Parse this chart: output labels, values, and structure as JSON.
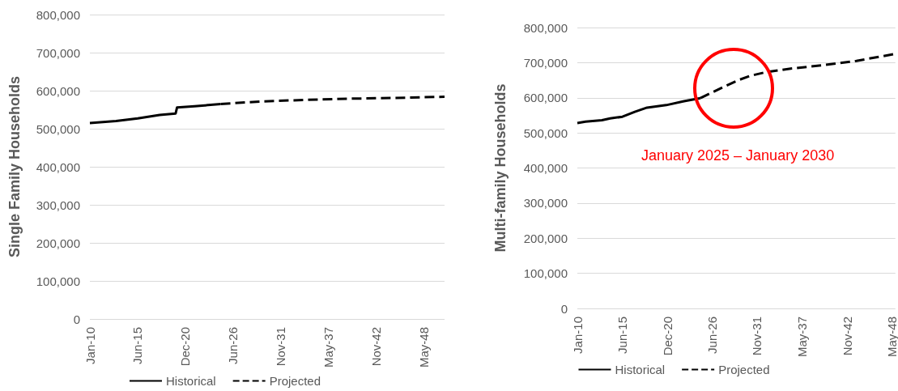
{
  "chart_data": [
    {
      "type": "line",
      "ylabel": "Single Family Households",
      "xlim": [
        "2010-01-01",
        "2050-09-01"
      ],
      "ylim": [
        0,
        800000
      ],
      "yticks": [
        0,
        {
          "value": 100000,
          "label": "100,000"
        },
        {
          "value": 200000,
          "label": "200,000"
        },
        {
          "value": 300000,
          "label": "300,000"
        },
        {
          "value": 400000,
          "label": "400,000"
        },
        {
          "value": 500000,
          "label": "500,000"
        },
        {
          "value": 600000,
          "label": "600,000"
        },
        {
          "value": 700000,
          "label": "700,000"
        },
        {
          "value": 800000,
          "label": "800,000"
        }
      ],
      "xticks": [
        {
          "value": "2010-01-01",
          "label": "Jan-10"
        },
        {
          "value": "2015-06-23",
          "label": "Jun-15"
        },
        {
          "value": "2020-12-14",
          "label": "Dec-20"
        },
        {
          "value": "2026-06-05",
          "label": "Jun-26"
        },
        {
          "value": "2031-11-26",
          "label": "Nov-31"
        },
        {
          "value": "2037-05-19",
          "label": "May-37"
        },
        {
          "value": "2042-11-09",
          "label": "Nov-42"
        },
        {
          "value": "2048-05-01",
          "label": "May-48"
        }
      ],
      "grid": "y",
      "legend": "bottom",
      "marker": "none",
      "series": [
        {
          "name": "Historical",
          "color": "#000000",
          "line_style": "solid",
          "x": [
            "2010-01",
            "2013-01",
            "2015-07",
            "2018-01",
            "2019-11",
            "2020-01",
            "2022-01",
            "2025-01"
          ],
          "values": [
            515000,
            520000,
            527000,
            536000,
            540000,
            556000,
            559000,
            565000
          ]
        },
        {
          "name": "Projected",
          "color": "#000000",
          "line_style": "dashed",
          "x": [
            "2025-01",
            "2030-01",
            "2035-01",
            "2040-01",
            "2045-01",
            "2050-09"
          ],
          "values": [
            565000,
            572000,
            576000,
            579000,
            581000,
            584000
          ]
        }
      ]
    },
    {
      "type": "line",
      "ylabel": "Multi-family Households",
      "xlim": [
        "2010-01-01",
        "2048-10-01"
      ],
      "ylim": [
        0,
        800000
      ],
      "yticks": [
        0,
        {
          "value": 100000,
          "label": "100,000"
        },
        {
          "value": 200000,
          "label": "200,000"
        },
        {
          "value": 300000,
          "label": "300,000"
        },
        {
          "value": 400000,
          "label": "400,000"
        },
        {
          "value": 500000,
          "label": "500,000"
        },
        {
          "value": 600000,
          "label": "600,000"
        },
        {
          "value": 700000,
          "label": "700,000"
        },
        {
          "value": 800000,
          "label": "800,000"
        }
      ],
      "xticks": [
        {
          "value": "2010-01-01",
          "label": "Jan-10"
        },
        {
          "value": "2015-06-23",
          "label": "Jun-15"
        },
        {
          "value": "2020-12-14",
          "label": "Dec-20"
        },
        {
          "value": "2026-06-05",
          "label": "Jun-26"
        },
        {
          "value": "2031-11-26",
          "label": "Nov-31"
        },
        {
          "value": "2037-05-19",
          "label": "May-37"
        },
        {
          "value": "2042-11-09",
          "label": "Nov-42"
        },
        {
          "value": "2048-05-01",
          "label": "May-48"
        }
      ],
      "grid": "y",
      "legend": "bottom",
      "marker": "none",
      "annotations": [
        "January 2025 – January 2030"
      ],
      "series": [
        {
          "name": "Historical",
          "color": "#000000",
          "line_style": "solid",
          "x": [
            "2010-01",
            "2011-01",
            "2013-01",
            "2014-01",
            "2015-07",
            "2017-01",
            "2018-07",
            "2020-11",
            "2023-01",
            "2025-01"
          ],
          "values": [
            528000,
            532000,
            536000,
            541000,
            546000,
            560000,
            572000,
            579000,
            590000,
            599000
          ]
        },
        {
          "name": "Projected",
          "color": "#000000",
          "line_style": "dashed",
          "x": [
            "2025-01",
            "2026-07",
            "2028-01",
            "2029-07",
            "2031-01",
            "2033-01",
            "2036-01",
            "2040-01",
            "2044-01",
            "2048-10"
          ],
          "values": [
            599000,
            616000,
            633000,
            649000,
            662000,
            673000,
            683000,
            693000,
            705000,
            725000
          ]
        }
      ]
    }
  ]
}
